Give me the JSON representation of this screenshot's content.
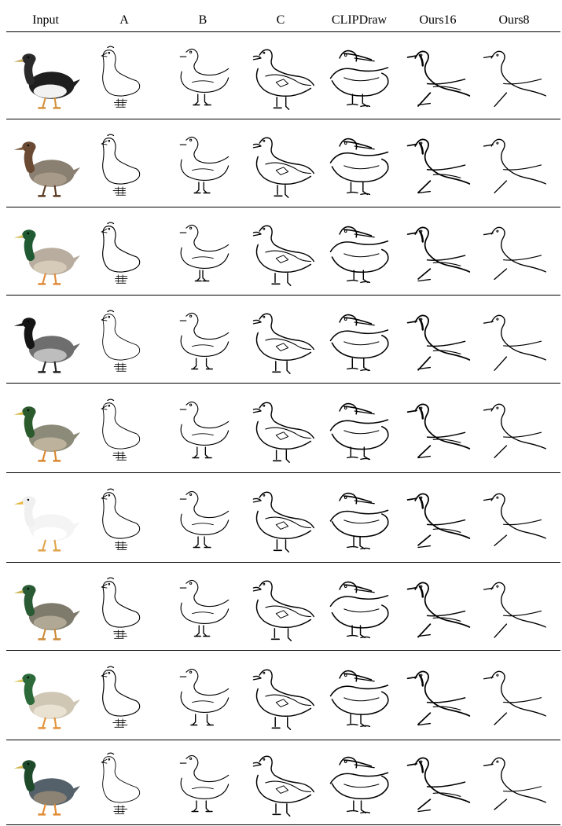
{
  "columns": [
    "Input",
    "A",
    "B",
    "C",
    "CLIPDraw",
    "Ours16",
    "Ours8"
  ],
  "rows": [
    {
      "subject": "domestic duck, black and white plumage",
      "palette": {
        "body": "#1e1e1e",
        "belly": "#f2f2f2",
        "head": "#2a2a2a",
        "bill": "#c7a95a",
        "feet": "#d4913a"
      }
    },
    {
      "subject": "brown speckled female duck",
      "palette": {
        "body": "#8a8072",
        "belly": "#a89a88",
        "head": "#6a4a32",
        "bill": "#7d5a3c",
        "feet": "#5a3a22"
      }
    },
    {
      "subject": "mallard drake, green head",
      "palette": {
        "body": "#b8ad9e",
        "belly": "#d6cbb8",
        "head": "#1f5a33",
        "bill": "#d8c060",
        "feet": "#e08a3a"
      }
    },
    {
      "subject": "canada goose",
      "palette": {
        "body": "#6e6e6e",
        "belly": "#bdbdbd",
        "head": "#151515",
        "bill": "#151515",
        "feet": "#222222"
      }
    },
    {
      "subject": "mallard drake, green head",
      "palette": {
        "body": "#8c8a78",
        "belly": "#bdb39c",
        "head": "#2b5a2d",
        "bill": "#d7b844",
        "feet": "#d9862e"
      }
    },
    {
      "subject": "white domestic duck",
      "palette": {
        "body": "#f4f4f4",
        "belly": "#ffffff",
        "head": "#f0f0f0",
        "bill": "#e7b63c",
        "feet": "#e0a54a"
      }
    },
    {
      "subject": "mallard drake, small",
      "palette": {
        "body": "#7e7a6c",
        "belly": "#b0a894",
        "head": "#2a5a33",
        "bill": "#c9b04a",
        "feet": "#cc8a3a"
      }
    },
    {
      "subject": "mallard drake, facing left",
      "palette": {
        "body": "#cfc6b4",
        "belly": "#e9e2d2",
        "head": "#2c6a3a",
        "bill": "#e1c55a",
        "feet": "#e3923a"
      }
    },
    {
      "subject": "mallard drake, standing",
      "palette": {
        "body": "#55616a",
        "belly": "#8c8374",
        "head": "#1e4a2a",
        "bill": "#d2b24a",
        "feet": "#e28a32"
      }
    }
  ]
}
